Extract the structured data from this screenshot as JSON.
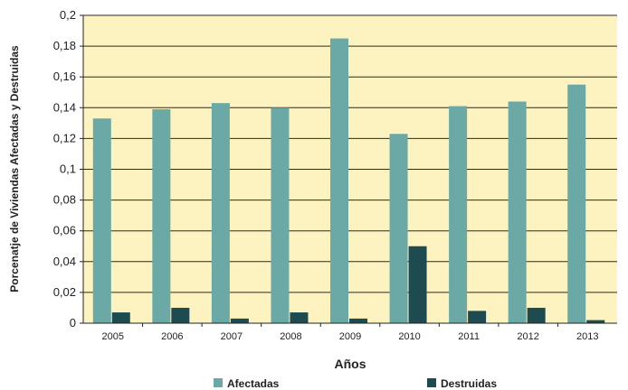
{
  "chart_data": {
    "type": "bar",
    "categories": [
      "2005",
      "2006",
      "2007",
      "2008",
      "2009",
      "2010",
      "2011",
      "2012",
      "2013"
    ],
    "series": [
      {
        "name": "Afectadas",
        "values": [
          0.133,
          0.139,
          0.143,
          0.14,
          0.185,
          0.123,
          0.141,
          0.144,
          0.155
        ],
        "color": "#6aa9a5"
      },
      {
        "name": "Destruidas",
        "values": [
          0.007,
          0.01,
          0.003,
          0.007,
          0.003,
          0.05,
          0.008,
          0.01,
          0.002
        ],
        "color": "#1d4b50"
      }
    ],
    "title": "",
    "xlabel": "Años",
    "ylabel": "Porcenatje de Viviendas Afectadas y Destruidas",
    "ylim": [
      0,
      0.2
    ],
    "yticks": [
      "0",
      "0,02",
      "0,04",
      "0,06",
      "0,08",
      "0,1",
      "0,12",
      "0,14",
      "0,16",
      "0,18",
      "0,2"
    ],
    "grid": true,
    "legend_position": "bottom",
    "plot_background": "#fdf3c0"
  }
}
